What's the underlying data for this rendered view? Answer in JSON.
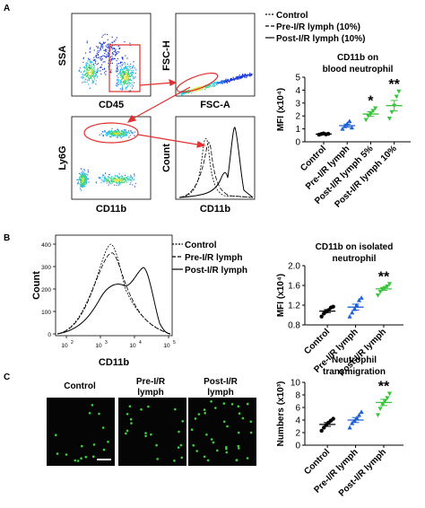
{
  "panels": {
    "A": "A",
    "B": "B",
    "C": "C"
  },
  "flow_a": {
    "ssa": "SSA",
    "cd45": "CD45",
    "fsch": "FSC-H",
    "fsca": "FSC-A",
    "ly6g": "Ly6G",
    "cd11b_x": "CD11b",
    "count": "Count",
    "cd11b_hist": "CD11b",
    "legend": [
      "Control",
      "Pre-I/R lymph (10%)",
      "Post-I/R lymph (10%)"
    ]
  },
  "flow_b": {
    "ylabel": "Count",
    "xlabel": "CD11b",
    "yticks": [
      "0",
      "100",
      "200",
      "300",
      "400"
    ],
    "xticks": [
      "10",
      "10",
      "10",
      "10"
    ],
    "xexp": [
      "2",
      "3",
      "4",
      "5"
    ],
    "legend": [
      "Control",
      "Pre-I/R lymph",
      "Post-I/R lymph"
    ]
  },
  "micro_c": {
    "labels": [
      "Control",
      "Pre-I/R\nlymph",
      "Post-I/R\nlymph"
    ],
    "label_lines": [
      [
        "Control"
      ],
      [
        "Pre-I/R",
        "lymph"
      ],
      [
        "Post-I/R",
        "lymph"
      ]
    ]
  },
  "chart_data": [
    {
      "type": "scatter",
      "title": "CD11b on blood neutrophil",
      "title_lines": [
        "CD11b on",
        "blood neutrophil"
      ],
      "ylabel": "MFI (x10⁴)",
      "ylim": [
        0,
        5
      ],
      "yticks": [
        "0",
        "1",
        "2",
        "3",
        "4",
        "5"
      ],
      "categories": [
        "Control",
        "Pre-I/R lymph",
        "Post-I/R lymph 5%",
        "Post-I/R lymph 10%"
      ],
      "colors": [
        "#000000",
        "#1f5fd6",
        "#39c43a",
        "#39c43a"
      ],
      "markers": [
        "circle",
        "triangle",
        "triangle-down",
        "triangle-down"
      ],
      "points": [
        [
          0.55,
          0.6,
          0.65,
          0.58,
          0.62
        ],
        [
          1.0,
          1.2,
          1.4,
          1.6,
          1.1
        ],
        [
          1.7,
          2.0,
          2.2,
          2.4,
          2.6
        ],
        [
          1.8,
          2.3,
          2.8,
          3.5,
          3.9
        ]
      ],
      "means": [
        0.6,
        1.25,
        2.15,
        2.8
      ],
      "sem": [
        0.03,
        0.12,
        0.18,
        0.4
      ],
      "annotations": [
        "",
        "",
        "*",
        "**"
      ]
    },
    {
      "type": "scatter",
      "title": "CD11b on isolated neutrophil",
      "title_lines": [
        "CD11b on isolated",
        "neutrophil"
      ],
      "ylabel": "MFI (x10⁴)",
      "ylim": [
        0.8,
        2.0
      ],
      "yticks": [
        "0.8",
        "1.2",
        "1.6",
        "2.0"
      ],
      "categories": [
        "Control",
        "Pre-I/R lymph",
        "Post-I/R lymph"
      ],
      "colors": [
        "#000000",
        "#1f5fd6",
        "#39c43a"
      ],
      "markers": [
        "circle",
        "triangle",
        "triangle-down"
      ],
      "points": [
        [
          0.97,
          1.03,
          1.07,
          1.1,
          1.15,
          1.17
        ],
        [
          0.97,
          1.05,
          1.12,
          1.2,
          1.3,
          1.35
        ],
        [
          1.4,
          1.47,
          1.52,
          1.55,
          1.58,
          1.63
        ]
      ],
      "means": [
        1.08,
        1.16,
        1.53
      ],
      "sem": [
        0.03,
        0.06,
        0.03
      ],
      "annotations": [
        "",
        "",
        "**"
      ]
    },
    {
      "type": "scatter",
      "title": "Neutrophil transmigration",
      "title_lines": [
        "Neutrophil",
        "transmigration"
      ],
      "ylabel": "Numbers (x10³)",
      "ylim": [
        0,
        10
      ],
      "yticks": [
        "0",
        "2",
        "4",
        "6",
        "8",
        "10"
      ],
      "categories": [
        "Control",
        "Pre-I/R lymph",
        "Post-I/R lymph"
      ],
      "colors": [
        "#000000",
        "#1f5fd6",
        "#39c43a"
      ],
      "markers": [
        "circle",
        "triangle",
        "triangle-down"
      ],
      "points": [
        [
          2.3,
          2.8,
          3.2,
          3.6,
          3.9,
          4.2
        ],
        [
          2.8,
          3.5,
          3.9,
          4.3,
          4.8,
          5.3
        ],
        [
          4.8,
          5.8,
          6.5,
          7.0,
          7.5,
          8.2
        ]
      ],
      "means": [
        3.3,
        4.0,
        6.8
      ],
      "sem": [
        0.3,
        0.4,
        0.5
      ],
      "annotations": [
        "",
        "",
        "**"
      ]
    }
  ]
}
